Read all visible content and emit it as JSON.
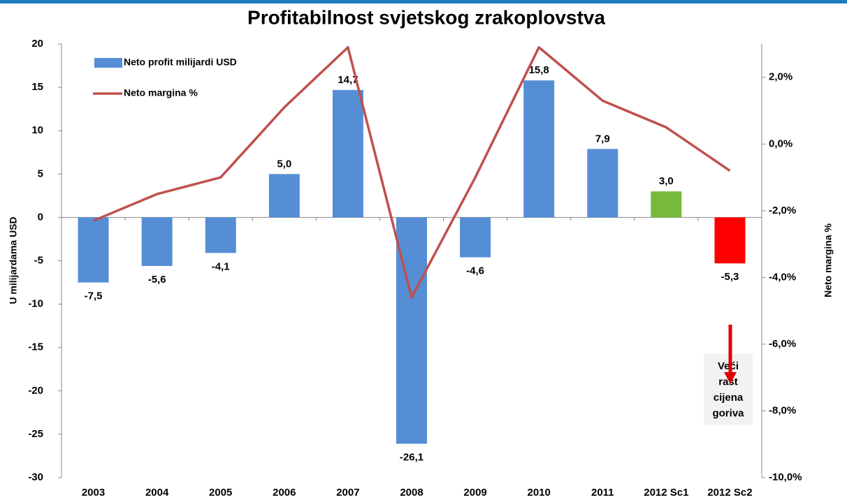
{
  "chart_data": {
    "type": "bar",
    "title": "Profitabilnost svjetskog zrakoplovstva",
    "y_label": "U milijardama USD",
    "y2_label": "Neto margina %",
    "categories": [
      "2003",
      "2004",
      "2005",
      "2006",
      "2007",
      "2008",
      "2009",
      "2010",
      "2011",
      "2012 Sc1",
      "2012 Sc2"
    ],
    "series": [
      {
        "name": "Neto profit milijardi USD",
        "type": "bar",
        "color": "#558ed5",
        "colors": [
          "#558ed5",
          "#558ed5",
          "#558ed5",
          "#558ed5",
          "#558ed5",
          "#558ed5",
          "#558ed5",
          "#558ed5",
          "#558ed5",
          "#77b93a",
          "#ff0000"
        ],
        "values": [
          -7.5,
          -5.6,
          -4.1,
          5.0,
          14.7,
          -26.1,
          -4.6,
          15.8,
          7.9,
          3.0,
          -5.3
        ],
        "value_labels": [
          "-7,5",
          "-5,6",
          "-4,1",
          "5,0",
          "14,7",
          "-26,1",
          "-4,6",
          "15,8",
          "7,9",
          "3,0",
          "-5,3"
        ],
        "value_label_colors": [
          "#000000",
          "#000000",
          "#000000",
          "#000000",
          "#000000",
          "#000000",
          "#000000",
          "#000000",
          "#000000",
          "#000000",
          "#ff0000"
        ]
      },
      {
        "name": "Neto margina %",
        "type": "line",
        "axis": "y2",
        "color": "#c0504d",
        "values": [
          -2.3,
          -1.5,
          -1.0,
          1.1,
          2.9,
          -4.6,
          -1.0,
          2.9,
          1.3,
          0.5,
          -0.8
        ]
      }
    ],
    "ylim": [
      -30,
      20
    ],
    "yticks": [
      20,
      15,
      10,
      5,
      0,
      -5,
      -10,
      -15,
      -20,
      -25,
      -30
    ],
    "y2lim": [
      -10,
      3
    ],
    "y2ticks": [
      {
        "value": 2,
        "label": "2,0%"
      },
      {
        "value": 0,
        "label": "0,0%"
      },
      {
        "value": -2,
        "label": "-2,0%"
      },
      {
        "value": -4,
        "label": "-4,0%"
      },
      {
        "value": -6,
        "label": "-6,0%"
      },
      {
        "value": -8,
        "label": "-8,0%"
      },
      {
        "value": -10,
        "label": "-10,0%"
      }
    ],
    "legend": "upper left",
    "annotation": [
      "Veći",
      "rast",
      "cijena",
      "goriva"
    ]
  }
}
